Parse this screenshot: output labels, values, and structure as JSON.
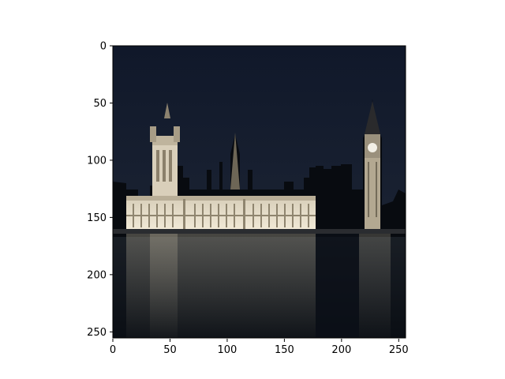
{
  "figure": {
    "kind": "image-plot",
    "image_size": [
      256,
      256
    ]
  },
  "axes": {
    "x_ticks": [
      "0",
      "50",
      "100",
      "150",
      "200",
      "250"
    ],
    "y_ticks": [
      "0",
      "50",
      "100",
      "150",
      "200",
      "250"
    ]
  },
  "image": {
    "colors": {
      "sky_top": "#121a28",
      "sky_bottom": "#1b2230",
      "water": "#0f141c",
      "building_lit": "#e7ddc8",
      "silhouette": "#070a0f",
      "clock_face": "#f2efe6"
    }
  }
}
